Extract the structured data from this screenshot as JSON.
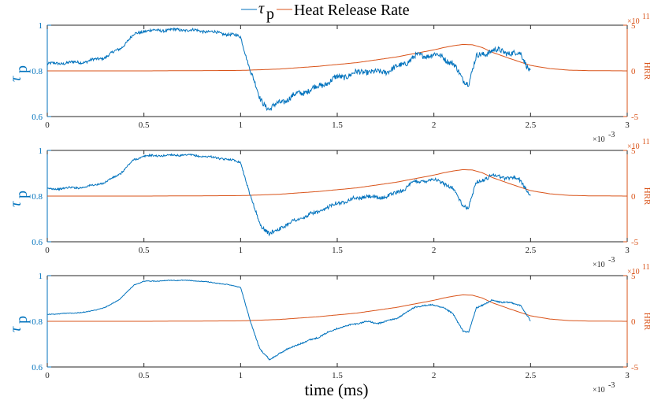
{
  "chart_data": {
    "type": "line",
    "legend": {
      "tau_symbol": "τ",
      "tau_subscript": "p",
      "hrr_label": "Heat Release Rate",
      "placement": "top-center"
    },
    "xlabel": "time (ms)",
    "x_exponent_base": "×10",
    "x_exponent_power": "-3",
    "right_exponent_base": "×10",
    "right_exponent_power": "11",
    "left_ylabel_symbol": "τ",
    "left_ylabel_subscript": "p",
    "right_ylabel": "HRR",
    "xlim": [
      0,
      3
    ],
    "x_ticks": [
      "0",
      "0.5",
      "1",
      "1.5",
      "2",
      "2.5",
      "3"
    ],
    "left_ylim": [
      0.6,
      1.0
    ],
    "left_ticks": [
      "0.6",
      "0.8",
      "1"
    ],
    "right_ylim": [
      -5,
      5
    ],
    "right_ticks": [
      "-5",
      "0",
      "5"
    ],
    "colors": {
      "tau": "#0072BD",
      "hrr": "#D95319",
      "axis_left": "#0072BD",
      "axis_right": "#D95319"
    },
    "series": [
      {
        "name": "tau_p",
        "axis": "left",
        "x": [
          0,
          0.1,
          0.2,
          0.3,
          0.38,
          0.45,
          0.5,
          0.6,
          0.7,
          0.8,
          0.9,
          0.97,
          1.0,
          1.05,
          1.1,
          1.15,
          1.2,
          1.3,
          1.4,
          1.5,
          1.6,
          1.65,
          1.7,
          1.8,
          1.9,
          1.95,
          2.0,
          2.05,
          2.1,
          2.15,
          2.18,
          2.22,
          2.3,
          2.4,
          2.45,
          2.5
        ],
        "y": [
          0.83,
          0.835,
          0.84,
          0.86,
          0.9,
          0.96,
          0.975,
          0.978,
          0.98,
          0.975,
          0.965,
          0.955,
          0.95,
          0.8,
          0.68,
          0.63,
          0.66,
          0.7,
          0.73,
          0.77,
          0.79,
          0.8,
          0.79,
          0.81,
          0.86,
          0.87,
          0.87,
          0.86,
          0.83,
          0.76,
          0.75,
          0.86,
          0.89,
          0.88,
          0.87,
          0.8
        ]
      },
      {
        "name": "Heat Release Rate",
        "axis": "right",
        "x": [
          0,
          0.5,
          1.0,
          1.2,
          1.4,
          1.6,
          1.8,
          1.9,
          2.0,
          2.05,
          2.1,
          2.15,
          2.2,
          2.25,
          2.3,
          2.4,
          2.5,
          2.6,
          2.7,
          2.8,
          3.0
        ],
        "y": [
          0,
          0,
          0.05,
          0.2,
          0.5,
          0.9,
          1.5,
          1.9,
          2.3,
          2.55,
          2.75,
          2.9,
          2.85,
          2.55,
          2.05,
          1.3,
          0.6,
          0.25,
          0.08,
          0.03,
          0
        ]
      }
    ],
    "panels": [
      {
        "name": "panel-1",
        "noise": 0.012
      },
      {
        "name": "panel-2",
        "noise": 0.008
      },
      {
        "name": "panel-3",
        "noise": 0.003
      }
    ]
  }
}
